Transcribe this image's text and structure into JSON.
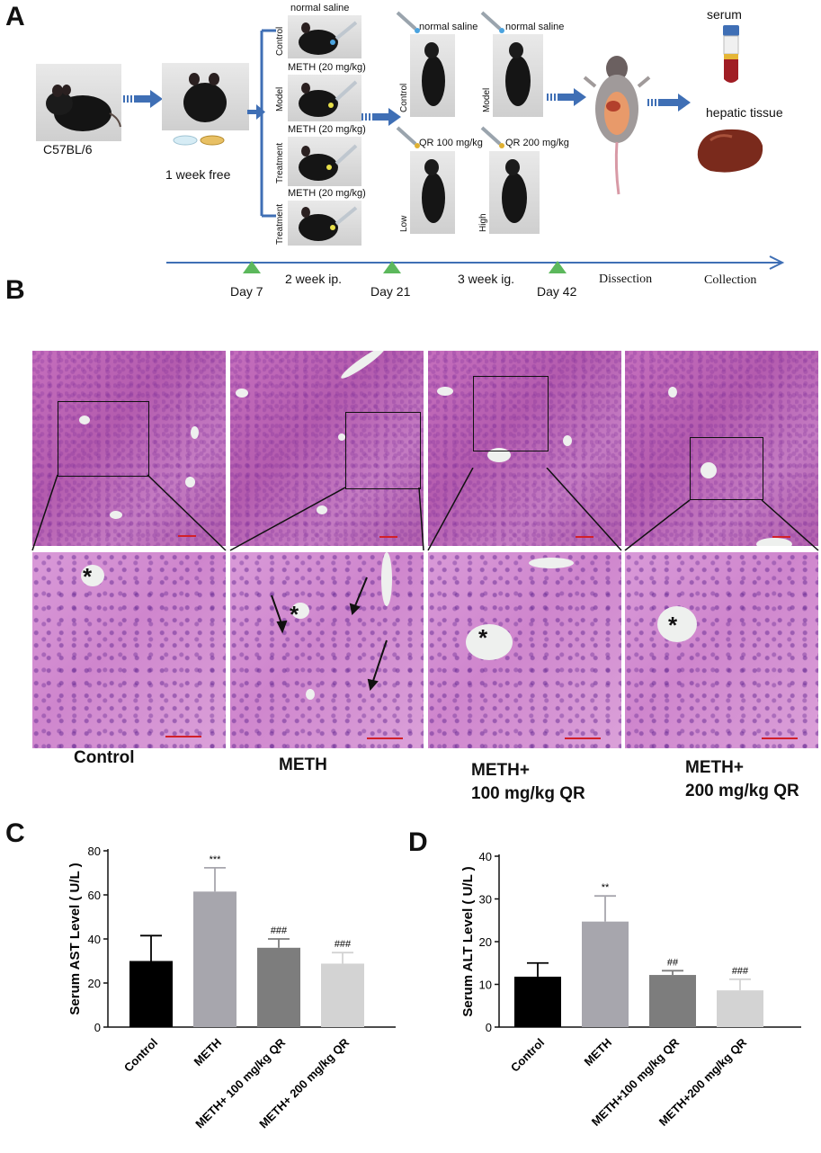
{
  "panels": {
    "a": "A",
    "b": "B",
    "c": "C",
    "d": "D"
  },
  "schematic": {
    "strain": "C57BL/6",
    "acclimation": "1  week free",
    "injection_groups": [
      {
        "side": "Control",
        "dose": "normal saline",
        "dot_color": "#4aa3df"
      },
      {
        "side": "Model",
        "dose": "METH (20 mg/kg)",
        "dot_color": "#e8e04a"
      },
      {
        "side": "Treatment",
        "dose": "METH (20 mg/kg)",
        "dot_color": "#e8e04a"
      },
      {
        "side": "Treatment",
        "dose": "METH (20 mg/kg)",
        "dot_color": "#e8e04a"
      }
    ],
    "gavage_groups": [
      {
        "side": "Control",
        "dose": "normal saline"
      },
      {
        "side": "Model",
        "dose": "normal saline"
      },
      {
        "side": "Low",
        "dose": "QR 100 mg/kg"
      },
      {
        "side": "High",
        "dose": "QR 200 mg/kg"
      }
    ],
    "outputs": {
      "serum": "serum",
      "tissue": "hepatic tissue"
    },
    "timeline": {
      "days": [
        "Day 7",
        "Day 21",
        "Day 42"
      ],
      "phases": [
        "2  week ip.",
        "3 week ig."
      ],
      "steps": [
        "Dissection",
        "Collection"
      ],
      "color": "#3f6fb5",
      "marker_color": "#5cb85c"
    }
  },
  "histology": {
    "conditions": [
      {
        "line1": "Control",
        "line2": ""
      },
      {
        "line1": "METH",
        "line2": ""
      },
      {
        "line1": "METH+",
        "line2": "100 mg/kg QR"
      },
      {
        "line1": "METH+",
        "line2": "200 mg/kg QR"
      }
    ],
    "asterisk": "*"
  },
  "chart_data": [
    {
      "type": "bar",
      "ylabel": "Serum AST Level ( U/L )",
      "categories": [
        "Control",
        "METH",
        "METH+ 100 mg/kg QR",
        "METH+ 200 mg/kg QR"
      ],
      "values": [
        30,
        61.5,
        36,
        28.8
      ],
      "errors": [
        11.5,
        10.8,
        4.0,
        5.0
      ],
      "annotations": [
        "",
        "***",
        "###",
        "###"
      ],
      "colors": [
        "#000000",
        "#a7a6ad",
        "#7d7d7d",
        "#d3d3d3"
      ],
      "ylim": [
        0,
        80
      ],
      "yticks": [
        0,
        20,
        40,
        60,
        80
      ]
    },
    {
      "type": "bar",
      "ylabel": "Serum ALT Level ( U/L )",
      "categories": [
        "Control",
        "METH",
        "METH+100 mg/kg QR",
        "METH+200 mg/kg QR"
      ],
      "values": [
        11.8,
        24.7,
        12.2,
        8.6
      ],
      "errors": [
        3.2,
        6.0,
        1.0,
        2.6
      ],
      "annotations": [
        "",
        "**",
        "##",
        "###"
      ],
      "colors": [
        "#000000",
        "#a7a6ad",
        "#7d7d7d",
        "#d3d3d3"
      ],
      "ylim": [
        0,
        40
      ],
      "yticks": [
        0,
        10,
        20,
        30,
        40
      ]
    }
  ]
}
